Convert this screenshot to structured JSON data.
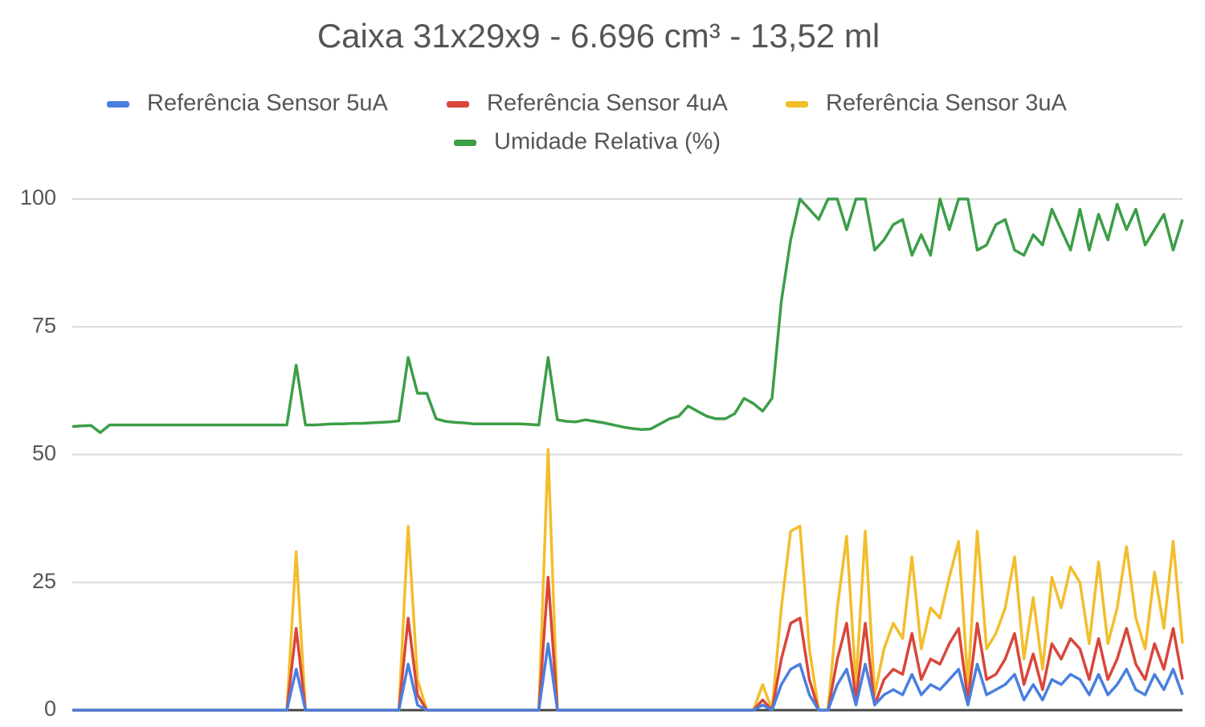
{
  "chart_data": {
    "type": "line",
    "title": "Caixa 31x29x9 - 6.696 cm³ - 13,52 ml",
    "ylim": [
      0,
      100
    ],
    "yticks": [
      0,
      25,
      50,
      75,
      100
    ],
    "grid": true,
    "series": [
      {
        "name": "Referência Sensor 5uA",
        "color": "#4a7fe0",
        "values": [
          0,
          0,
          0,
          0,
          0,
          0,
          0,
          0,
          0,
          0,
          0,
          0,
          0,
          0,
          0,
          0,
          0,
          0,
          0,
          0,
          0,
          0,
          0,
          0,
          8,
          0,
          0,
          0,
          0,
          0,
          0,
          0,
          0,
          0,
          0,
          0,
          9,
          1,
          0,
          0,
          0,
          0,
          0,
          0,
          0,
          0,
          0,
          0,
          0,
          0,
          0,
          13,
          0,
          0,
          0,
          0,
          0,
          0,
          0,
          0,
          0,
          0,
          0,
          0,
          0,
          0,
          0,
          0,
          0,
          0,
          0,
          0,
          0,
          0,
          1,
          0,
          5,
          8,
          9,
          3,
          0,
          0,
          5,
          8,
          1,
          9,
          1,
          3,
          4,
          3,
          7,
          3,
          5,
          4,
          6,
          8,
          1,
          9,
          3,
          4,
          5,
          7,
          2,
          5,
          2,
          6,
          5,
          7,
          6,
          3,
          7,
          3,
          5,
          8,
          4,
          3,
          7,
          4,
          8,
          3
        ]
      },
      {
        "name": "Referência Sensor 4uA",
        "color": "#d9463b",
        "values": [
          0,
          0,
          0,
          0,
          0,
          0,
          0,
          0,
          0,
          0,
          0,
          0,
          0,
          0,
          0,
          0,
          0,
          0,
          0,
          0,
          0,
          0,
          0,
          0,
          16,
          0,
          0,
          0,
          0,
          0,
          0,
          0,
          0,
          0,
          0,
          0,
          18,
          3,
          0,
          0,
          0,
          0,
          0,
          0,
          0,
          0,
          0,
          0,
          0,
          0,
          0,
          26,
          0,
          0,
          0,
          0,
          0,
          0,
          0,
          0,
          0,
          0,
          0,
          0,
          0,
          0,
          0,
          0,
          0,
          0,
          0,
          0,
          0,
          0,
          2,
          0,
          10,
          17,
          18,
          6,
          0,
          0,
          10,
          17,
          2,
          17,
          1,
          6,
          8,
          7,
          15,
          6,
          10,
          9,
          13,
          16,
          2,
          17,
          6,
          7,
          10,
          15,
          5,
          11,
          4,
          13,
          10,
          14,
          12,
          6,
          14,
          6,
          10,
          16,
          9,
          6,
          13,
          8,
          16,
          6
        ]
      },
      {
        "name": "Referência Sensor 3uA",
        "color": "#f2be2c",
        "values": [
          0,
          0,
          0,
          0,
          0,
          0,
          0,
          0,
          0,
          0,
          0,
          0,
          0,
          0,
          0,
          0,
          0,
          0,
          0,
          0,
          0,
          0,
          0,
          0,
          31,
          0,
          0,
          0,
          0,
          0,
          0,
          0,
          0,
          0,
          0,
          0,
          36,
          6,
          0,
          0,
          0,
          0,
          0,
          0,
          0,
          0,
          0,
          0,
          0,
          0,
          0,
          51,
          0,
          0,
          0,
          0,
          0,
          0,
          0,
          0,
          0,
          0,
          0,
          0,
          0,
          0,
          0,
          0,
          0,
          0,
          0,
          0,
          0,
          0,
          5,
          0,
          20,
          35,
          36,
          12,
          0,
          0,
          20,
          34,
          5,
          35,
          3,
          12,
          17,
          14,
          30,
          12,
          20,
          18,
          26,
          33,
          5,
          35,
          12,
          15,
          20,
          30,
          10,
          22,
          8,
          26,
          20,
          28,
          25,
          13,
          29,
          13,
          20,
          32,
          18,
          12,
          27,
          16,
          33,
          13
        ]
      },
      {
        "name": "Umidade Relativa (%)",
        "color": "#3c9e47",
        "values": [
          55.5,
          55.6,
          55.7,
          54.3,
          55.8,
          55.8,
          55.8,
          55.8,
          55.8,
          55.8,
          55.8,
          55.8,
          55.8,
          55.8,
          55.8,
          55.8,
          55.8,
          55.8,
          55.8,
          55.8,
          55.8,
          55.8,
          55.8,
          55.8,
          67.5,
          55.8,
          55.8,
          55.9,
          56,
          56,
          56.1,
          56.1,
          56.2,
          56.3,
          56.4,
          56.6,
          69,
          62,
          62,
          57,
          56.5,
          56.3,
          56.2,
          56,
          56,
          56,
          56,
          56,
          56,
          55.9,
          55.8,
          69,
          56.8,
          56.5,
          56.4,
          56.8,
          56.5,
          56.2,
          55.8,
          55.4,
          55.1,
          54.9,
          55,
          56,
          57,
          57.5,
          59.5,
          58.5,
          57.5,
          57,
          57,
          58,
          61,
          60,
          58.5,
          61,
          80,
          92,
          100,
          98,
          96,
          100,
          100,
          94,
          100,
          100,
          90,
          92,
          95,
          96,
          89,
          93,
          89,
          100,
          94,
          100,
          100,
          90,
          91,
          95,
          96,
          90,
          89,
          93,
          91,
          98,
          94,
          90,
          98,
          90,
          97,
          92,
          99,
          94,
          98,
          91,
          94,
          97,
          90,
          96
        ]
      }
    ]
  }
}
